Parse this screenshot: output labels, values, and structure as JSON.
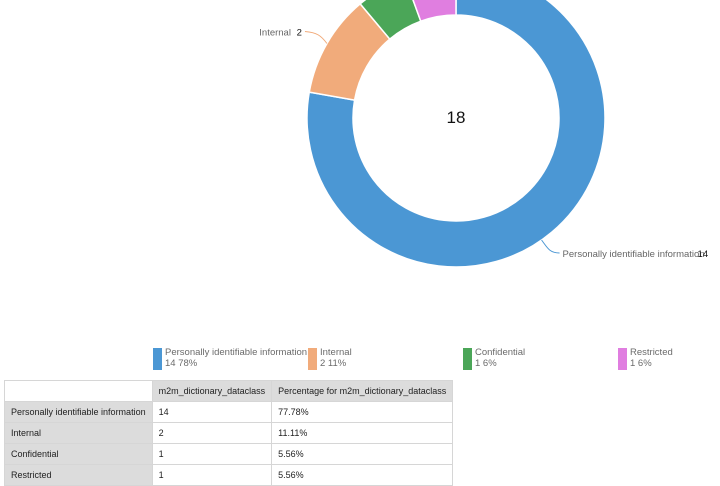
{
  "chart_data": {
    "type": "pie",
    "variant": "donut",
    "center_label": "18",
    "categories": [
      "Personally identifiable information",
      "Internal",
      "Confidential",
      "Restricted"
    ],
    "values": [
      14,
      2,
      1,
      1
    ],
    "percent_labels": [
      "78%",
      "11%",
      "6%",
      "6%"
    ],
    "colors": [
      "#4b97d4",
      "#f1ab7b",
      "#4ba658",
      "#e07ee0"
    ],
    "slice_labels": [
      {
        "name": "Personally identifiable information",
        "value": "14"
      },
      {
        "name": "Internal",
        "value": "2"
      }
    ]
  },
  "legend": [
    {
      "name": "Personally identifiable information",
      "detail": "14 78%",
      "color": "#4b97d4"
    },
    {
      "name": "Internal",
      "detail": "2 11%",
      "color": "#f1ab7b"
    },
    {
      "name": "Confidential",
      "detail": "1 6%",
      "color": "#4ba658"
    },
    {
      "name": "Restricted",
      "detail": "1 6%",
      "color": "#e07ee0"
    }
  ],
  "table": {
    "headers": [
      "m2m_dictionary_dataclass",
      "Percentage for m2m_dictionary_dataclass"
    ],
    "rows": [
      {
        "label": "Personally identifiable information",
        "count": "14",
        "pct": "77.78%"
      },
      {
        "label": "Internal",
        "count": "2",
        "pct": "11.11%"
      },
      {
        "label": "Confidential",
        "count": "1",
        "pct": "5.56%"
      },
      {
        "label": "Restricted",
        "count": "1",
        "pct": "5.56%"
      }
    ]
  }
}
